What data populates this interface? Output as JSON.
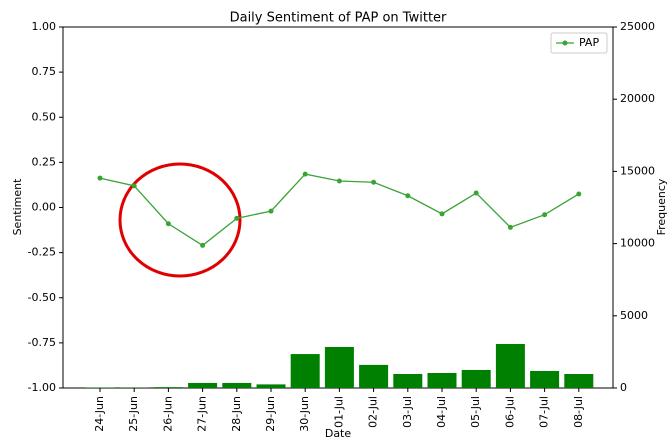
{
  "chart_data": {
    "type": "line",
    "title": "Daily Sentiment of PAP on Twitter",
    "x_label": "Date",
    "y_label": "Sentiment",
    "y2_label": "Frequency",
    "categories": [
      "24-Jun",
      "25-Jun",
      "26-Jun",
      "27-Jun",
      "28-Jun",
      "29-Jun",
      "30-Jun",
      "01-Jul",
      "02-Jul",
      "03-Jul",
      "04-Jul",
      "05-Jul",
      "06-Jul",
      "07-Jul",
      "08-Jul"
    ],
    "series": [
      {
        "name": "PAP",
        "type": "line",
        "color": "#3aa335",
        "values": [
          0.163,
          0.12,
          -0.09,
          -0.21,
          -0.06,
          -0.02,
          0.185,
          0.147,
          0.14,
          0.065,
          -0.035,
          0.08,
          -0.11,
          -0.04,
          0.075
        ]
      },
      {
        "type": "bar",
        "axis": "y2",
        "color": "#008000",
        "values": [
          30,
          20,
          60,
          350,
          350,
          250,
          2350,
          2840,
          1600,
          970,
          1040,
          1250,
          3050,
          1180,
          970
        ]
      }
    ],
    "ylim": [
      -1,
      1
    ],
    "yticks": [
      {
        "value": -1,
        "label": "-1.00"
      },
      -0.75,
      {
        "value": -0.5,
        "label": "-0.50"
      },
      -0.25,
      {
        "value": 0,
        "label": "0.00"
      },
      0.25,
      {
        "value": 0.5,
        "label": "0.50"
      },
      0.75,
      {
        "value": 1,
        "label": "1.00"
      }
    ],
    "y2lim": [
      0,
      25000
    ],
    "y2ticks": [
      0,
      5000,
      10000,
      15000,
      20000,
      25000
    ],
    "legend": "upper right",
    "grid": false
  }
}
